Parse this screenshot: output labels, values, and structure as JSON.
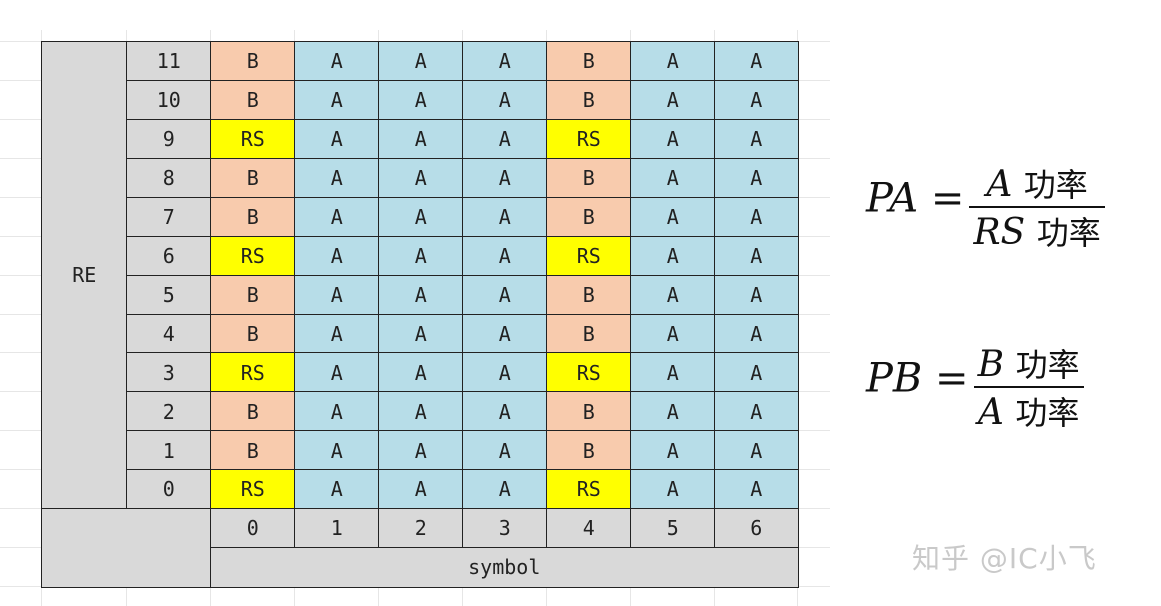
{
  "table": {
    "row_axis_label": "RE",
    "column_axis_label": "symbol",
    "row_labels": [
      "11",
      "10",
      "9",
      "8",
      "7",
      "6",
      "5",
      "4",
      "3",
      "2",
      "1",
      "0"
    ],
    "column_labels": [
      "0",
      "1",
      "2",
      "3",
      "4",
      "5",
      "6"
    ],
    "rows": [
      [
        "B",
        "A",
        "A",
        "A",
        "B",
        "A",
        "A"
      ],
      [
        "B",
        "A",
        "A",
        "A",
        "B",
        "A",
        "A"
      ],
      [
        "RS",
        "A",
        "A",
        "A",
        "RS",
        "A",
        "A"
      ],
      [
        "B",
        "A",
        "A",
        "A",
        "B",
        "A",
        "A"
      ],
      [
        "B",
        "A",
        "A",
        "A",
        "B",
        "A",
        "A"
      ],
      [
        "RS",
        "A",
        "A",
        "A",
        "RS",
        "A",
        "A"
      ],
      [
        "B",
        "A",
        "A",
        "A",
        "B",
        "A",
        "A"
      ],
      [
        "B",
        "A",
        "A",
        "A",
        "B",
        "A",
        "A"
      ],
      [
        "RS",
        "A",
        "A",
        "A",
        "RS",
        "A",
        "A"
      ],
      [
        "B",
        "A",
        "A",
        "A",
        "B",
        "A",
        "A"
      ],
      [
        "B",
        "A",
        "A",
        "A",
        "B",
        "A",
        "A"
      ],
      [
        "RS",
        "A",
        "A",
        "A",
        "RS",
        "A",
        "A"
      ]
    ]
  },
  "colors": {
    "RS": "#ffff00",
    "B": "#f8cbad",
    "A": "#b7dde8",
    "header": "#d9d9d9"
  },
  "formulas": {
    "pa": {
      "lhs": "PA =",
      "num_var": "A",
      "num_cn": "功率",
      "den_var": "RS",
      "den_cn": "功率"
    },
    "pb": {
      "lhs": "PB =",
      "num_var": "B",
      "num_cn": "功率",
      "den_var": "A",
      "den_cn": "功率"
    }
  },
  "watermark": "知乎 @IC小飞"
}
